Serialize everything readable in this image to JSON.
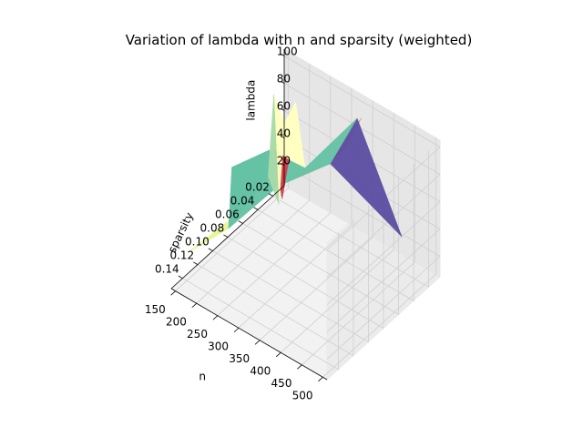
{
  "chart_data": {
    "type": "surface3d",
    "title": "Variation of lambda with n and sparsity (weighted)",
    "xlabel": "n",
    "ylabel": "sparsity",
    "zlabel": "lambda",
    "x_ticks": [
      "150",
      "200",
      "250",
      "300",
      "350",
      "400",
      "450",
      "500"
    ],
    "y_ticks": [
      "0.02",
      "0.04",
      "0.06",
      "0.08",
      "0.10",
      "0.12",
      "0.14"
    ],
    "z_ticks": [
      "20",
      "40",
      "60",
      "80",
      "100"
    ],
    "xlim": [
      140,
      510
    ],
    "ylim": [
      0.005,
      0.155
    ],
    "zlim": [
      5,
      105
    ],
    "grid": true,
    "colormap": "Spectral",
    "faces": [
      {
        "color": "#f57748",
        "points": [
          [
            350,
            0.02,
            100
          ],
          [
            310,
            0.02,
            70
          ],
          [
            330,
            0.05,
            78
          ]
        ]
      },
      {
        "color": "#5e4fa2",
        "points": [
          [
            500,
            0.05,
            55
          ],
          [
            340,
            0.02,
            98
          ],
          [
            330,
            0.05,
            78
          ]
        ]
      },
      {
        "color": "#fed27f",
        "points": [
          [
            330,
            0.05,
            78
          ],
          [
            270,
            0.05,
            64
          ],
          [
            260,
            0.08,
            64
          ]
        ]
      },
      {
        "color": "#ffffbf",
        "points": [
          [
            270,
            0.05,
            64
          ],
          [
            230,
            0.04,
            100
          ],
          [
            220,
            0.07,
            78
          ]
        ]
      },
      {
        "color": "#e6f598",
        "points": [
          [
            240,
            0.1,
            60
          ],
          [
            160,
            0.09,
            20
          ],
          [
            150,
            0.14,
            25
          ]
        ]
      },
      {
        "color": "#66c2a5",
        "points": [
          [
            340,
            0.02,
            98
          ],
          [
            330,
            0.05,
            78
          ],
          [
            260,
            0.08,
            64
          ],
          [
            160,
            0.09,
            20
          ],
          [
            150,
            0.08,
            58
          ],
          [
            220,
            0.07,
            78
          ],
          [
            270,
            0.05,
            64
          ]
        ]
      },
      {
        "color": "#66c2a5",
        "points": [
          [
            220,
            0.07,
            78
          ],
          [
            150,
            0.08,
            58
          ],
          [
            160,
            0.09,
            20
          ],
          [
            200,
            0.06,
            50
          ]
        ]
      },
      {
        "color": "#d53e4f",
        "points": [
          [
            180,
            0.03,
            15
          ],
          [
            140,
            0.02,
            40
          ],
          [
            160,
            0.01,
            30
          ]
        ]
      },
      {
        "color": "#ffffbf",
        "points": [
          [
            190,
            0.04,
            18
          ],
          [
            150,
            0.01,
            55
          ],
          [
            160,
            0.03,
            88
          ]
        ]
      },
      {
        "color": "#a7dba8",
        "points": [
          [
            200,
            0.06,
            50
          ],
          [
            160,
            0.03,
            88
          ],
          [
            190,
            0.04,
            18
          ]
        ]
      }
    ]
  }
}
